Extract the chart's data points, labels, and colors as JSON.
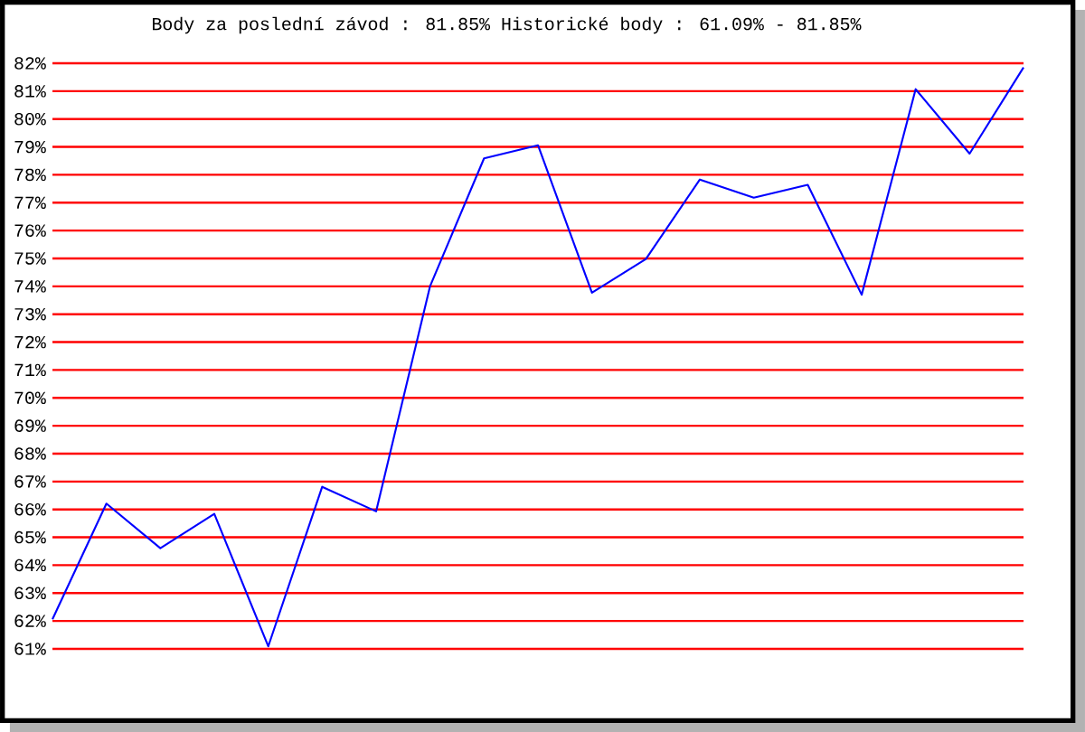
{
  "chart_data": {
    "type": "line",
    "title": "Body za poslední závod : 81.85%  Historické body : 61.09% - 81.85%",
    "categories": [
      null,
      null,
      null,
      null,
      null,
      null,
      null,
      null,
      null,
      null,
      null,
      null,
      null,
      null,
      null,
      null,
      null,
      null,
      null
    ],
    "series": [
      {
        "color": "#0000ff",
        "values": [
          62.06,
          66.21,
          64.61,
          65.84,
          61.09,
          66.81,
          65.93,
          74.01,
          78.59,
          79.06,
          73.77,
          74.98,
          77.83,
          77.18,
          77.64,
          73.7,
          81.07,
          78.76,
          81.85
        ]
      }
    ],
    "ylim": [
      61,
      82
    ],
    "yticks": [
      {
        "value": 61,
        "label": "61%"
      },
      {
        "value": 62,
        "label": "62%"
      },
      {
        "value": 63,
        "label": "63%"
      },
      {
        "value": 64,
        "label": "64%"
      },
      {
        "value": 65,
        "label": "65%"
      },
      {
        "value": 66,
        "label": "66%"
      },
      {
        "value": 67,
        "label": "67%"
      },
      {
        "value": 68,
        "label": "68%"
      },
      {
        "value": 69,
        "label": "69%"
      },
      {
        "value": 70,
        "label": "70%"
      },
      {
        "value": 71,
        "label": "71%"
      },
      {
        "value": 72,
        "label": "72%"
      },
      {
        "value": 73,
        "label": "73%"
      },
      {
        "value": 74,
        "label": "74%"
      },
      {
        "value": 75,
        "label": "75%"
      },
      {
        "value": 76,
        "label": "76%"
      },
      {
        "value": 77,
        "label": "77%"
      },
      {
        "value": 78,
        "label": "78%"
      },
      {
        "value": 79,
        "label": "79%"
      },
      {
        "value": 80,
        "label": "80%"
      },
      {
        "value": 81,
        "label": "81%"
      },
      {
        "value": 82,
        "label": "82%"
      }
    ],
    "grid": "y",
    "marker": "none",
    "line_style": "solid"
  }
}
